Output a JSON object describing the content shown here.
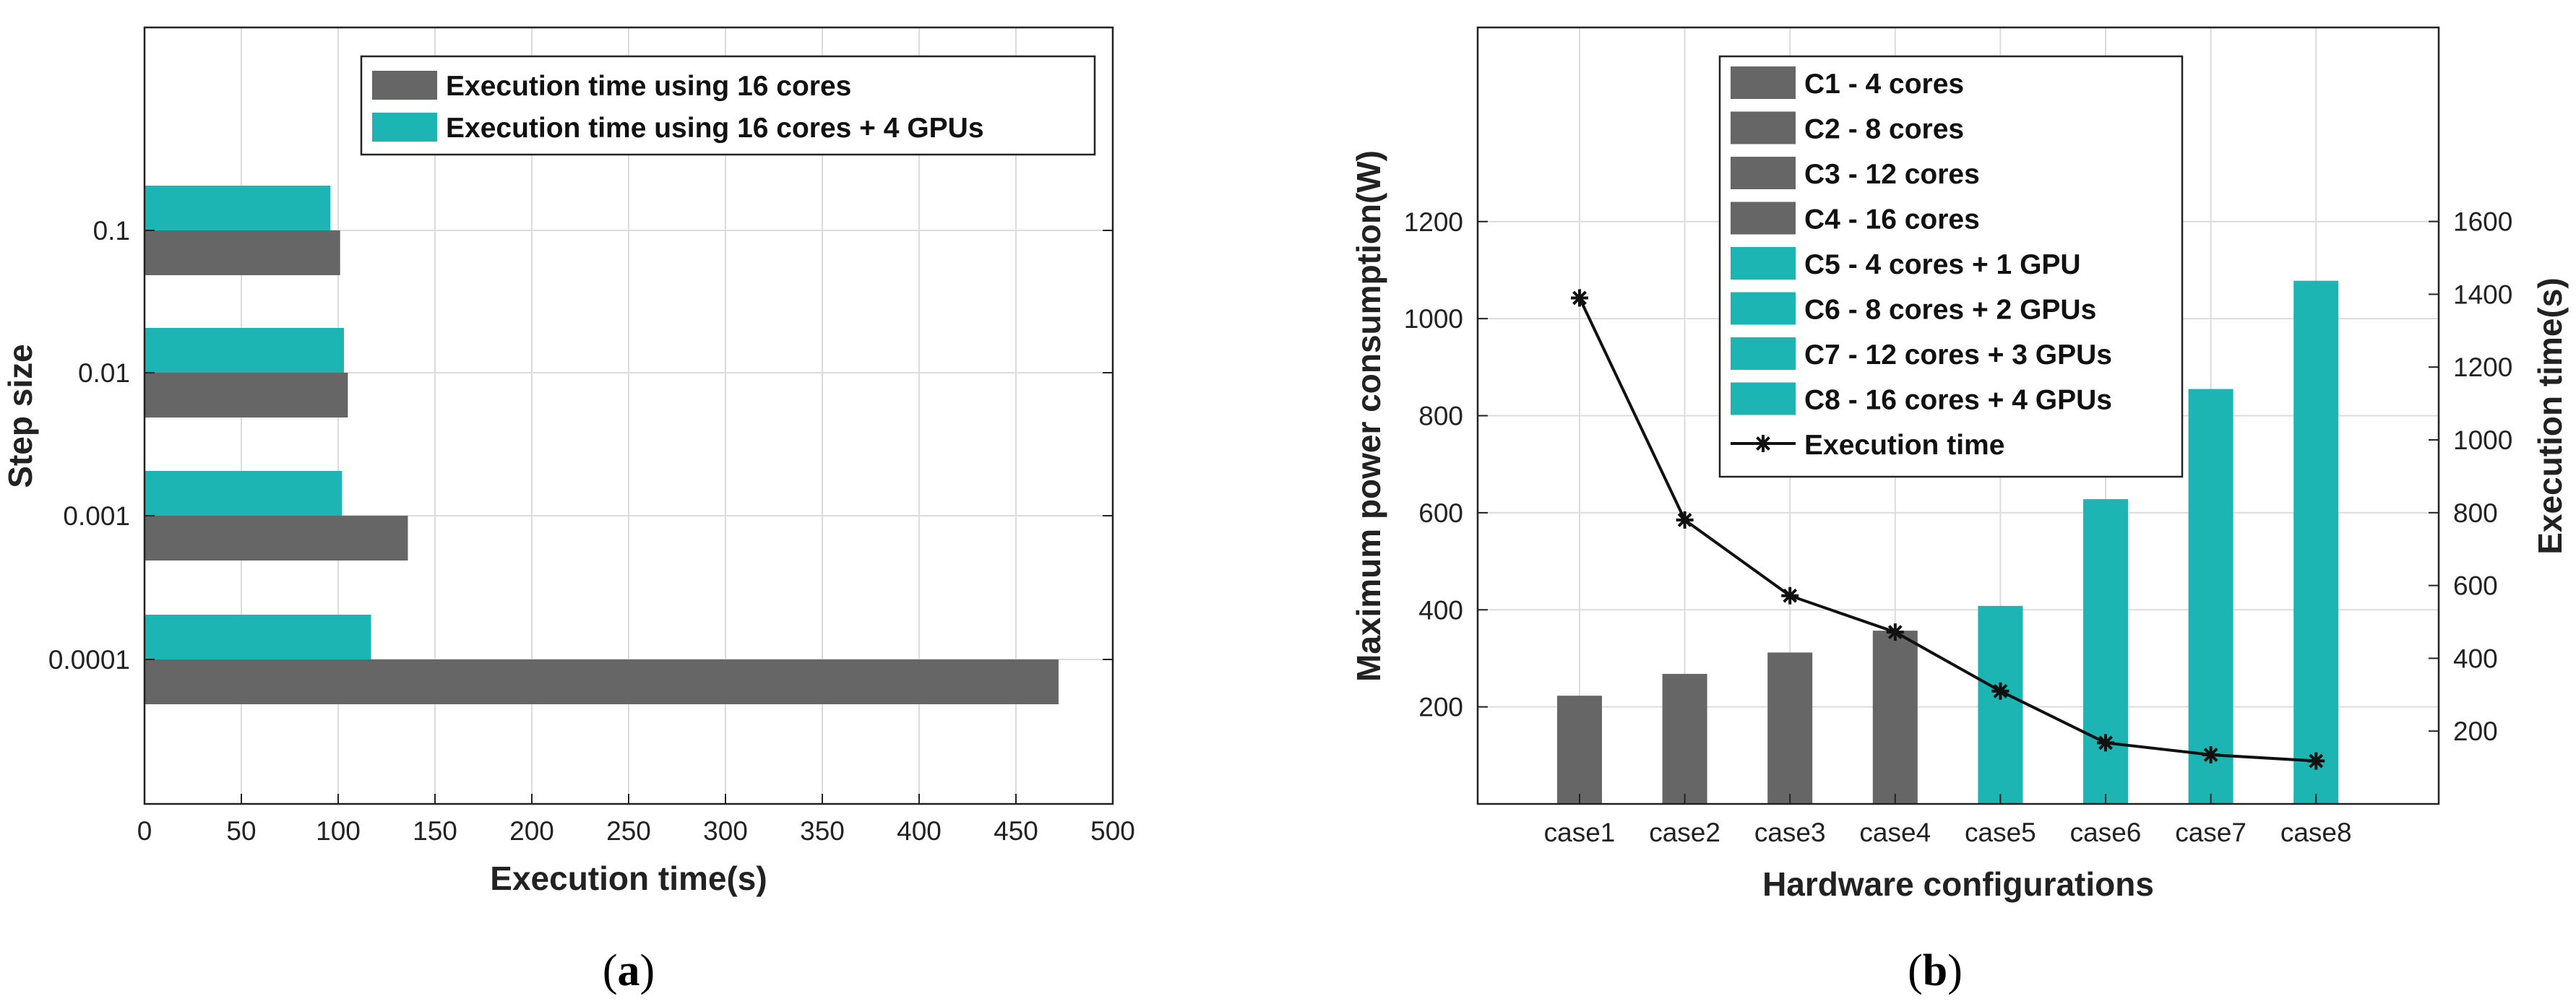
{
  "colors": {
    "cpu": "#666666",
    "gpu": "#1db4b4",
    "line": "#111111",
    "grid": "#dcdcdc",
    "axis": "#222222"
  },
  "chart_data": [
    {
      "type": "bar",
      "orientation": "horizontal",
      "panel_label": {
        "open": "(",
        "letter": "a",
        "close": ")"
      },
      "categories": [
        "0.0001",
        "0.001",
        "0.01",
        "0.1"
      ],
      "series": [
        {
          "name": "Execution time using 16 cores",
          "color_key": "cpu",
          "values": [
            472,
            136,
            105,
            101
          ]
        },
        {
          "name": "Execution time using 16 cores + 4 GPUs",
          "color_key": "gpu",
          "values": [
            117,
            102,
            103,
            96
          ]
        }
      ],
      "xlabel": "Execution time(s)",
      "ylabel": "Step size",
      "xlim": [
        0,
        500
      ],
      "xticks": [
        "0",
        "50",
        "100",
        "150",
        "200",
        "250",
        "300",
        "350",
        "400",
        "450",
        "500"
      ],
      "grid": true,
      "legend_position": "top-right"
    },
    {
      "type": "bar+line",
      "panel_label": {
        "open": "(",
        "letter": "b",
        "close": ")"
      },
      "categories": [
        "case1",
        "case2",
        "case3",
        "case4",
        "case5",
        "case6",
        "case7",
        "case8"
      ],
      "bars": {
        "values": [
          223,
          268,
          312,
          357,
          408,
          628,
          855,
          1078
        ],
        "color_keys": [
          "cpu",
          "cpu",
          "cpu",
          "cpu",
          "gpu",
          "gpu",
          "gpu",
          "gpu"
        ],
        "axis": "left"
      },
      "line": {
        "name": "Execution time",
        "values": [
          1390,
          780,
          572,
          472,
          310,
          168,
          135,
          118
        ],
        "axis": "right",
        "marker": "asterisk"
      },
      "legend": [
        {
          "label": "C1 - 4 cores",
          "color_key": "cpu"
        },
        {
          "label": "C2 - 8 cores",
          "color_key": "cpu"
        },
        {
          "label": "C3 - 12 cores",
          "color_key": "cpu"
        },
        {
          "label": "C4 - 16 cores",
          "color_key": "cpu"
        },
        {
          "label": "C5 - 4 cores + 1 GPU",
          "color_key": "gpu"
        },
        {
          "label": "C6 - 8 cores + 2 GPUs",
          "color_key": "gpu"
        },
        {
          "label": "C7 - 12 cores + 3 GPUs",
          "color_key": "gpu"
        },
        {
          "label": "C8 - 16 cores + 4 GPUs",
          "color_key": "gpu"
        },
        {
          "label": "Execution time",
          "line": true
        }
      ],
      "xlabel": "Hardware configurations",
      "ylabel_left": "Maximum power consumption(W)",
      "ylabel_right": "Execution time(s)",
      "ylim_left": [
        0,
        1600
      ],
      "yticks_left": [
        200,
        400,
        600,
        800,
        1000,
        1200
      ],
      "ylim_right": [
        0,
        2133
      ],
      "yticks_right": [
        200,
        400,
        600,
        800,
        1000,
        1200,
        1400,
        1600
      ],
      "grid": true,
      "legend_position": "top-center"
    }
  ]
}
